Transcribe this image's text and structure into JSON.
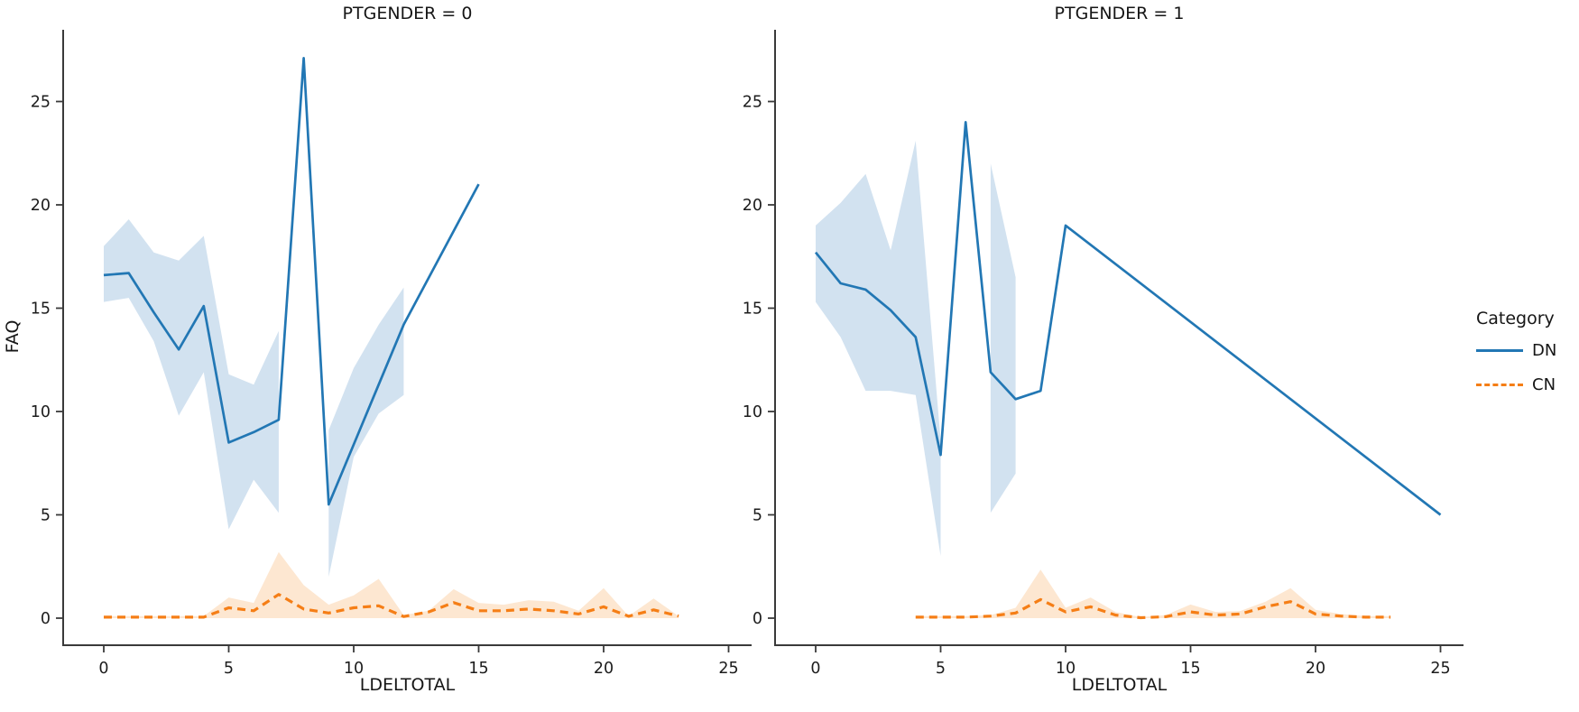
{
  "figure": {
    "background": "#ffffff",
    "ylabel": "FAQ",
    "legend": {
      "title": "Category",
      "entries": [
        {
          "label": "DN",
          "color": "#2277b4",
          "style": "solid"
        },
        {
          "label": "CN",
          "color": "#f57e16",
          "style": "dashed"
        }
      ]
    },
    "colors": {
      "dn_line": "#2277b4",
      "cn_line": "#f57e16",
      "dn_band": "#d2e2f0",
      "cn_band": "#fde7d1",
      "axis": "#3a3a3a",
      "text": "#1c1c1c"
    }
  },
  "chart_data": [
    {
      "type": "line",
      "title": "PTGENDER = 0",
      "xlabel": "LDELTOTAL",
      "ylabel": "FAQ",
      "x_ticks": [
        0,
        5,
        10,
        15,
        20,
        25
      ],
      "y_ticks": [
        0,
        5,
        10,
        15,
        20,
        25
      ],
      "xlim": [
        -1.6,
        25.9
      ],
      "ylim": [
        -1.3,
        28.5
      ],
      "grid": false,
      "series": [
        {
          "name": "DN",
          "color": "#2277b4",
          "style": "solid",
          "band_color": "#d2e2f0",
          "x": [
            0,
            1,
            2,
            3,
            4,
            5,
            6,
            7,
            8,
            9,
            10,
            11,
            12,
            15
          ],
          "y": [
            16.6,
            16.7,
            14.8,
            13.0,
            15.1,
            8.5,
            9.0,
            9.6,
            27.1,
            5.5,
            8.4,
            11.3,
            14.2,
            21.0
          ],
          "band": [
            {
              "x": [
                0,
                1,
                2,
                3,
                4,
                5,
                6,
                7
              ],
              "lo": [
                15.3,
                15.5,
                13.4,
                9.8,
                11.9,
                4.3,
                6.7,
                5.1
              ],
              "hi": [
                18.0,
                19.3,
                17.7,
                17.3,
                18.5,
                11.8,
                11.3,
                13.9
              ]
            },
            {
              "x": [
                9,
                10,
                11,
                12
              ],
              "lo": [
                2.0,
                7.8,
                9.9,
                10.8
              ],
              "hi": [
                9.1,
                12.1,
                14.2,
                16.0
              ]
            }
          ]
        },
        {
          "name": "CN",
          "color": "#f57e16",
          "style": "dashed",
          "band_color": "#fde7d1",
          "x": [
            0,
            1,
            2,
            3,
            4,
            5,
            6,
            7,
            8,
            9,
            10,
            11,
            12,
            13,
            14,
            15,
            16,
            17,
            18,
            19,
            20,
            21,
            22,
            23
          ],
          "y": [
            0.05,
            0.05,
            0.05,
            0.05,
            0.05,
            0.5,
            0.36,
            1.15,
            0.44,
            0.25,
            0.5,
            0.6,
            0.08,
            0.3,
            0.75,
            0.36,
            0.36,
            0.44,
            0.36,
            0.2,
            0.55,
            0.09,
            0.4,
            0.1
          ],
          "band": [
            {
              "x": [
                0,
                1,
                2,
                3,
                4,
                5,
                6,
                7,
                8,
                9,
                10,
                11,
                12,
                13,
                14,
                15,
                16,
                17,
                18,
                19,
                20,
                21,
                22,
                23
              ],
              "lo": [
                0,
                0,
                0,
                0,
                0,
                0,
                0,
                0,
                0,
                0,
                0,
                0,
                0,
                0,
                0,
                0,
                0,
                0,
                0,
                0,
                0,
                0,
                0,
                0
              ],
              "hi": [
                0.1,
                0.1,
                0.1,
                0.1,
                0.1,
                1.0,
                0.74,
                3.2,
                1.6,
                0.65,
                1.1,
                1.9,
                0.15,
                0.36,
                1.4,
                0.74,
                0.65,
                0.87,
                0.8,
                0.36,
                1.45,
                0.1,
                0.95,
                0.1
              ]
            }
          ]
        }
      ]
    },
    {
      "type": "line",
      "title": "PTGENDER = 1",
      "xlabel": "LDELTOTAL",
      "ylabel": "FAQ",
      "x_ticks": [
        0,
        5,
        10,
        15,
        20,
        25
      ],
      "y_ticks": [
        0,
        5,
        10,
        15,
        20,
        25
      ],
      "xlim": [
        -1.6,
        25.9
      ],
      "ylim": [
        -1.3,
        28.5
      ],
      "grid": false,
      "series": [
        {
          "name": "DN",
          "color": "#2277b4",
          "style": "solid",
          "band_color": "#d2e2f0",
          "x": [
            0,
            1,
            2,
            3,
            4,
            5,
            6,
            7,
            8,
            9,
            10,
            25
          ],
          "y": [
            17.7,
            16.2,
            15.9,
            14.9,
            13.6,
            7.9,
            24.0,
            11.9,
            10.6,
            11.0,
            19.0,
            5.0
          ],
          "band": [
            {
              "x": [
                0,
                1,
                2,
                3,
                4,
                5
              ],
              "lo": [
                15.3,
                13.6,
                11.0,
                11.0,
                10.8,
                3.0
              ],
              "hi": [
                19.0,
                20.1,
                21.5,
                17.8,
                23.1,
                8.6
              ]
            },
            {
              "x": [
                7,
                8
              ],
              "lo": [
                5.1,
                7.0
              ],
              "hi": [
                22.0,
                16.5
              ]
            }
          ]
        },
        {
          "name": "CN",
          "color": "#f57e16",
          "style": "dashed",
          "band_color": "#fde7d1",
          "x": [
            4,
            5,
            6,
            7,
            8,
            9,
            10,
            11,
            12,
            13,
            14,
            15,
            16,
            17,
            18,
            19,
            20,
            21,
            22,
            23
          ],
          "y": [
            0.05,
            0.05,
            0.05,
            0.1,
            0.25,
            0.9,
            0.3,
            0.55,
            0.15,
            0.02,
            0.07,
            0.3,
            0.15,
            0.2,
            0.55,
            0.8,
            0.2,
            0.1,
            0.05,
            0.05
          ],
          "band": [
            {
              "x": [
                4,
                5,
                6,
                7,
                8,
                9,
                10,
                11,
                12,
                13,
                14,
                15,
                16,
                17,
                18,
                19,
                20,
                21,
                22,
                23
              ],
              "lo": [
                0,
                0,
                0,
                0,
                0,
                0,
                0,
                0,
                0,
                0,
                0,
                0,
                0,
                0,
                0,
                0,
                0,
                0,
                0,
                0
              ],
              "hi": [
                0.1,
                0.1,
                0.1,
                0.15,
                0.5,
                2.35,
                0.5,
                1.0,
                0.3,
                0.05,
                0.15,
                0.66,
                0.3,
                0.35,
                0.8,
                1.45,
                0.4,
                0.2,
                0.1,
                0.1
              ]
            }
          ]
        }
      ]
    }
  ]
}
